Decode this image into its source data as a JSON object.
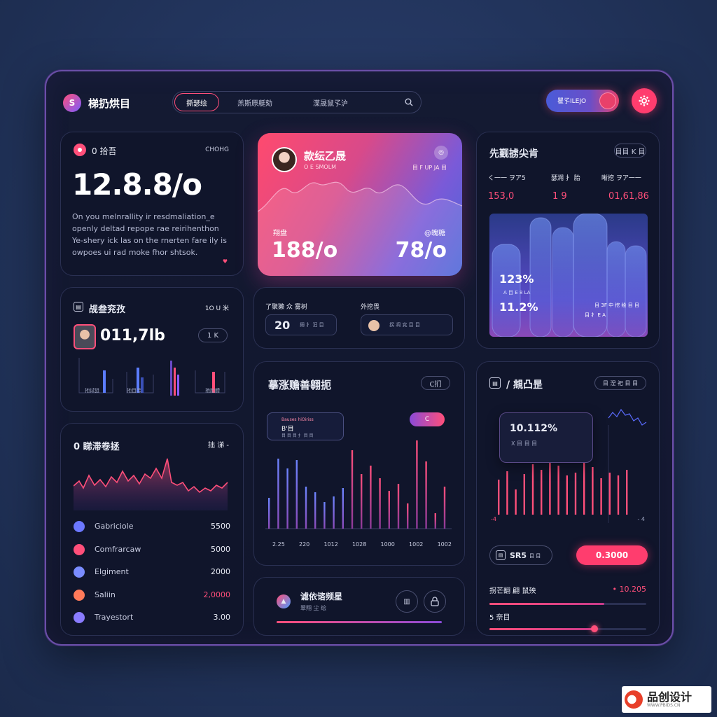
{
  "header": {
    "app_title": "梯扔烘目",
    "tabs": [
      "撕瑟绘",
      "羔斯原艇劾",
      "渫晟鼠孓沪"
    ],
    "toggle_label": "瞿孓ILEJO"
  },
  "card_stat": {
    "title": "0 拾吾",
    "corner": "CHOHG",
    "value": "12.8.8/o",
    "desc": [
      "On you melnrallity ir resdmaliation_e",
      "openly deltad repope rae reirihenthon",
      "Ye-shery ick las on the rnerten fare ily is",
      "owpoes ui rad moke fhor shtsok."
    ]
  },
  "card_hero": {
    "name": "款纭乙晟",
    "sub": "O E SMOLM",
    "right_sub": "目 F UP JA 目",
    "left_label": "翔盘",
    "left_value": "188/o",
    "right_label": "@魄糖",
    "right_value": "78/o"
  },
  "card_bars3d": {
    "title": "先觐掳尖肯",
    "badge": "目目 K 目",
    "cols": [
      {
        "label": "く一一 ヲア5",
        "value": "153,0"
      },
      {
        "label": "瑟溯 扌 胎",
        "value": "1 9"
      },
      {
        "label": "晰挖 ヲア一一",
        "value": "01,61,86"
      }
    ],
    "pct1": "123%",
    "pct1_sub": "A 目 E 8 LA",
    "pct2": "11.2%",
    "legend1": "目 3F 中 挖 绘 目 目",
    "legend2": "目 扌 E A"
  },
  "card_user": {
    "title": "觇叁兖孜",
    "corner": "1O U 米",
    "value": "011,7lb",
    "btn": "1 K",
    "bar_labels": [
      "扡铽狙",
      "扡目羔",
      "",
      "扡胎醴"
    ]
  },
  "card_mini": {
    "left_label": "了聚獭 众 雾树",
    "right_label": "外挖畏",
    "left_value": "20",
    "left_sub": "搦 扌 汩 目",
    "right_sub": "拐 凋 兖 目 目"
  },
  "card_bar_chart": {
    "title": "摹涨赡善翱扼",
    "badge": "C扪",
    "tooltip_title": "Bauses hiOiriss",
    "tooltip_value": "B'目",
    "tooltip_sub": "目 目 目 扌 目 目",
    "pill": "C",
    "x_labels": [
      "2.25",
      "220",
      "1012",
      "1028",
      "1000",
      "1002",
      "1002"
    ]
  },
  "card_line": {
    "title": "0 睇滞卷拯",
    "corner": "拙 涕 -",
    "items": [
      {
        "name": "Gabriciole",
        "value": "5500",
        "color": "#6c78ff"
      },
      {
        "name": "Comfrarcaw",
        "value": "5000",
        "color": "#ff4f7a"
      },
      {
        "name": "Elgiment",
        "value": "2000",
        "color": "#7a8cff"
      },
      {
        "name": "Saliin",
        "value": "2,0000",
        "color": "#ff7a5a"
      },
      {
        "name": "Trayestort",
        "value": "3.00",
        "color": "#8a7cff"
      }
    ]
  },
  "card_progress": {
    "title": "谑依谘频星",
    "sub": "翠翔 尘 绘"
  },
  "card_right_bottom": {
    "title": "/ 覜凸昰",
    "badge": "目 涅 祀 目 目",
    "tooltip_value": "10.112%",
    "tooltip_sub": "X 目 目 目",
    "left_axis": "-4",
    "right_axis": "- 4",
    "btn_left": "SR5",
    "btn_left_sub": "目 目",
    "btn_right": "0.3000",
    "row1_label": "拐芒翻 翩 鼠殃",
    "row1_value": "10.205",
    "row2_label": "5 奈目",
    "row1_progress": 0.73,
    "row2_progress": 0.67
  },
  "watermark": {
    "text": "品创设计",
    "url": "WWW.PBIDS.CN"
  },
  "colors": {
    "accent": "#ff4f7a",
    "blue": "#5b6cff",
    "bg": "#10152b"
  }
}
